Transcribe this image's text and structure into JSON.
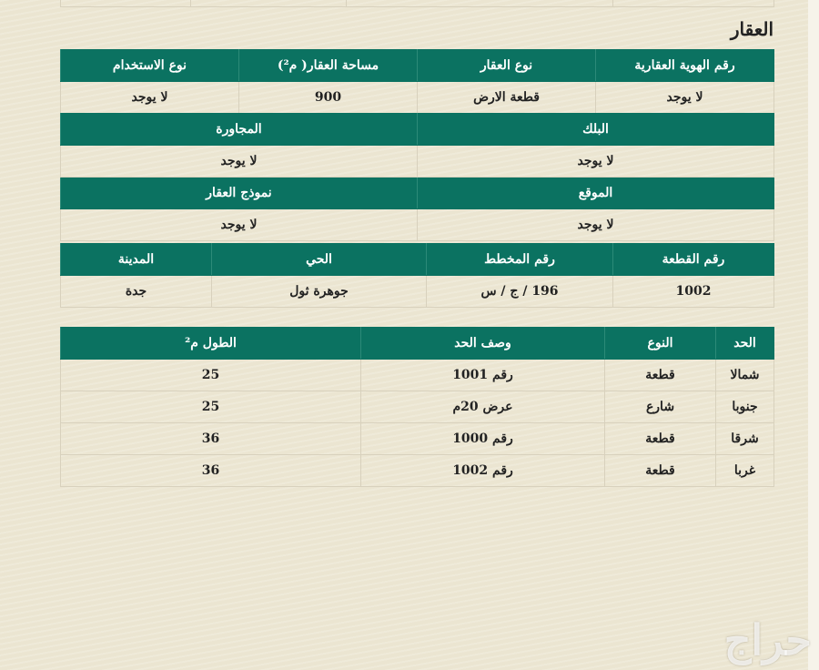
{
  "section_title": "العقار",
  "property": {
    "row1": {
      "headers": [
        "رقم الهوية العقارية",
        "نوع العقار",
        "مساحة العقار( م²)",
        "نوع الاستخدام"
      ],
      "values": [
        "لا يوجد",
        "قطعة الارض",
        "900",
        "لا يوجد"
      ]
    },
    "row2": {
      "headers": [
        "البلك",
        "المجاورة"
      ],
      "values": [
        "لا يوجد",
        "لا يوجد"
      ]
    },
    "row3": {
      "headers": [
        "الموقع",
        "نموذج العقار"
      ],
      "values": [
        "لا يوجد",
        "لا يوجد"
      ]
    },
    "row4": {
      "headers": [
        "رقم القطعة",
        "رقم المخطط",
        "الحي",
        "المدينة"
      ],
      "values": [
        "1002",
        "196 / ج / س",
        "جوهرة ثول",
        "جدة"
      ]
    }
  },
  "boundaries": {
    "headers": [
      "الحد",
      "النوع",
      "وصف الحد",
      "الطول م²"
    ],
    "rows": [
      [
        "شمالا",
        "قطعة",
        "رقم 1001",
        "25"
      ],
      [
        "جنوبا",
        "شارع",
        "عرض 20م",
        "25"
      ],
      [
        "شرقا",
        "قطعة",
        "رقم 1000",
        "36"
      ],
      [
        "غربا",
        "قطعة",
        "رقم 1002",
        "36"
      ]
    ]
  },
  "watermark": "حراج",
  "colors": {
    "header_bg": "#0b7261",
    "page_bg": "#ebe5d1"
  }
}
